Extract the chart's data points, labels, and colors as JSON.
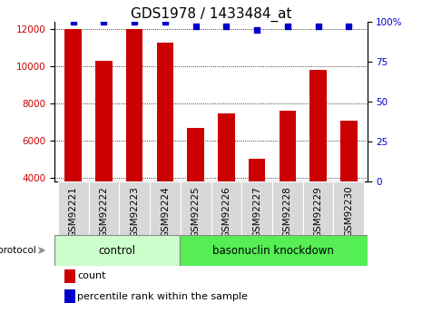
{
  "title": "GDS1978 / 1433484_at",
  "samples": [
    "GSM92221",
    "GSM92222",
    "GSM92223",
    "GSM92224",
    "GSM92225",
    "GSM92226",
    "GSM92227",
    "GSM92228",
    "GSM92229",
    "GSM92230"
  ],
  "counts": [
    12000,
    10300,
    12000,
    11300,
    6700,
    7450,
    5050,
    7600,
    9800,
    7100
  ],
  "percentiles": [
    100,
    100,
    100,
    100,
    97,
    97,
    95,
    97,
    97,
    97
  ],
  "ylim_left": [
    3800,
    12400
  ],
  "ylim_right": [
    0,
    100
  ],
  "yticks_left": [
    4000,
    6000,
    8000,
    10000,
    12000
  ],
  "yticks_right": [
    0,
    25,
    50,
    75,
    100
  ],
  "bar_color": "#cc0000",
  "dot_color": "#0000cc",
  "control_color": "#ccffcc",
  "knockdown_color": "#55ee55",
  "control_label": "control",
  "knockdown_label": "basonuclin knockdown",
  "protocol_label": "protocol",
  "legend_count": "count",
  "legend_pct": "percentile rank within the sample",
  "n_control": 4,
  "n_knockdown": 6,
  "title_fontsize": 11,
  "tick_fontsize": 7.5,
  "label_fontsize": 8
}
